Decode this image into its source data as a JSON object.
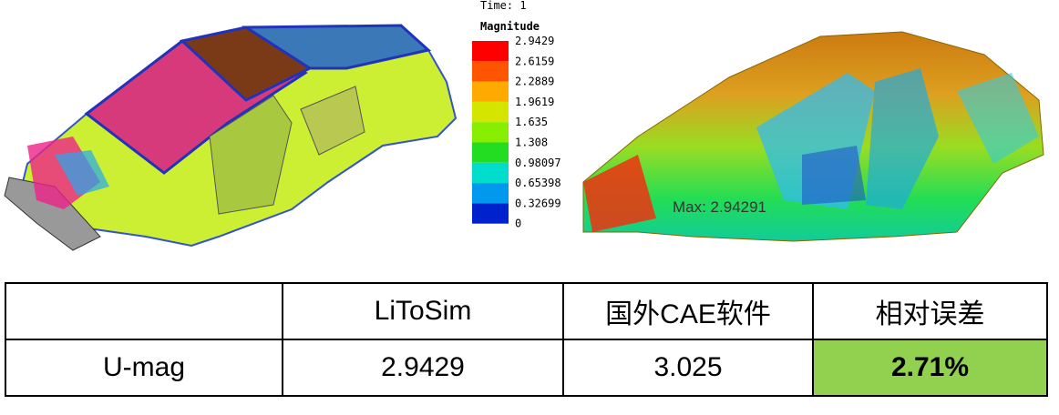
{
  "contour_plot": {
    "time": "Time: 1",
    "legend_title": "Magnitude",
    "legend_labels": [
      "2.9429",
      "2.6159",
      "2.2889",
      "1.9619",
      "1.635",
      "1.308",
      "0.98097",
      "0.65398",
      "0.32699",
      "0"
    ],
    "legend_colors": [
      "#ff0000",
      "#ff5500",
      "#ffaa00",
      "#d4e600",
      "#88ee00",
      "#22dd22",
      "#00ddcc",
      "#0099ee",
      "#0022cc"
    ],
    "max_annotation": "Max: 2.94291"
  },
  "table": {
    "header": [
      "",
      "LiToSim",
      "国外CAE软件",
      "相对误差"
    ],
    "rows": [
      [
        "U-mag",
        "2.9429",
        "3.025",
        "2.71%"
      ]
    ]
  }
}
